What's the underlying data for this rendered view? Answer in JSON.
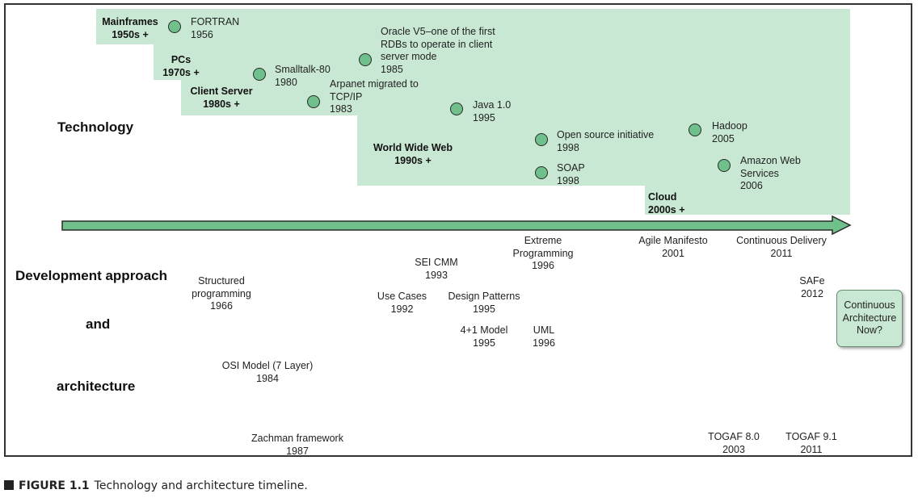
{
  "diagram": {
    "technology_label": "Technology",
    "dev_label": {
      "line1": "Development approach",
      "line2": "and",
      "line3": "architecture"
    },
    "eras": [
      {
        "line1": "Mainframes",
        "line2": "1950s +"
      },
      {
        "line1": "PCs",
        "line2": "1970s +"
      },
      {
        "line1": "Client Server",
        "line2": "1980s +"
      },
      {
        "line1": "World Wide Web",
        "line2": "1990s +"
      },
      {
        "line1": "Cloud",
        "line2": "2000s +"
      }
    ],
    "tech_events": [
      {
        "lines": [
          "FORTRAN",
          "1956"
        ]
      },
      {
        "lines": [
          "Smalltalk-80",
          "1980"
        ]
      },
      {
        "lines": [
          "Arpanet migrated to",
          "TCP/IP",
          "1983"
        ]
      },
      {
        "lines": [
          "Oracle V5–one of the first",
          "RDBs to operate in client",
          "server mode",
          "1985"
        ]
      },
      {
        "lines": [
          "Java 1.0",
          "1995"
        ]
      },
      {
        "lines": [
          "Open source initiative",
          "1998"
        ]
      },
      {
        "lines": [
          "SOAP",
          "1998"
        ]
      },
      {
        "lines": [
          "Hadoop",
          "2005"
        ]
      },
      {
        "lines": [
          "Amazon Web",
          "Services",
          "2006"
        ]
      }
    ],
    "dev_events": [
      {
        "lines": [
          "Structured",
          "programming",
          "1966"
        ]
      },
      {
        "lines": [
          "OSI Model (7 Layer)",
          "1984"
        ]
      },
      {
        "lines": [
          "Zachman framework",
          "1987"
        ]
      },
      {
        "lines": [
          "SEI CMM",
          "1993"
        ]
      },
      {
        "lines": [
          "Use Cases",
          "1992"
        ]
      },
      {
        "lines": [
          "Design Patterns",
          "1995"
        ]
      },
      {
        "lines": [
          "4+1 Model",
          "1995"
        ]
      },
      {
        "lines": [
          "UML",
          "1996"
        ]
      },
      {
        "lines": [
          "Extreme",
          "Programming",
          "1996"
        ]
      },
      {
        "lines": [
          "Agile Manifesto",
          "2001"
        ]
      },
      {
        "lines": [
          "Continuous Delivery",
          "2011"
        ]
      },
      {
        "lines": [
          "SAFe",
          "2012"
        ]
      },
      {
        "lines": [
          "TOGAF 8.0",
          "2003"
        ]
      },
      {
        "lines": [
          "TOGAF 9.1",
          "2011"
        ]
      }
    ],
    "future_box": "Continuous\nArchitecture\nNow?",
    "colors": {
      "era_fill": "#c9e8d4",
      "dot_fill": "#6fc08a",
      "arrow_fill": "#6fc08a",
      "outline": "#2a2a2a"
    }
  },
  "caption": {
    "figure": "FIGURE 1.1",
    "text": "Technology and architecture timeline."
  }
}
